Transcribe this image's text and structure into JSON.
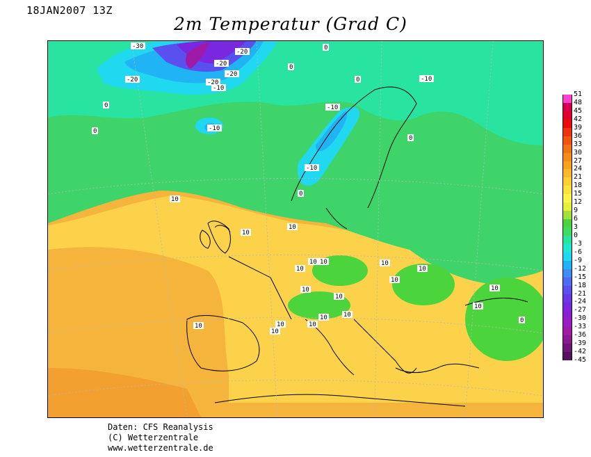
{
  "header": {
    "datetime": "18JAN2007 13Z",
    "title": "2m Temperatur (Grad C)"
  },
  "footer": {
    "line1": "Daten: CFS Reanalysis",
    "line2": "(C) Wetterzentrale",
    "line3": "www.wetterzentrale.de"
  },
  "legend": {
    "labels": [
      "51",
      "48",
      "45",
      "42",
      "39",
      "36",
      "33",
      "30",
      "27",
      "24",
      "21",
      "18",
      "15",
      "12",
      "9",
      "6",
      "3",
      "0",
      "-3",
      "-6",
      "-9",
      "-12",
      "-15",
      "-18",
      "-21",
      "-24",
      "-27",
      "-30",
      "-33",
      "-36",
      "-39",
      "-42",
      "-45"
    ],
    "colors": [
      "#ff3fcf",
      "#d4004f",
      "#e0002a",
      "#e80b0b",
      "#f03210",
      "#f05510",
      "#f07315",
      "#f48c18",
      "#f8a11e",
      "#fbb82a",
      "#fdd032",
      "#fde43c",
      "#fff44a",
      "#e6f03a",
      "#9ee23a",
      "#4cd43c",
      "#3fdc64",
      "#28e4a0",
      "#20e8d0",
      "#20d8f0",
      "#20b4f4",
      "#3f8cf4",
      "#4f6cf4",
      "#5a50f0",
      "#6a38e8",
      "#7a28e0",
      "#8a1ed0",
      "#9a1cc0",
      "#a01aa8",
      "#8a1890",
      "#701478",
      "#561060"
    ]
  },
  "map": {
    "region": "Europe",
    "contour_labels": [
      "-30",
      "-20",
      "-20",
      "-20",
      "-20",
      "-20",
      "-10",
      "-10",
      "-10",
      "-10",
      "-10",
      "0",
      "0",
      "0",
      "0",
      "0",
      "0",
      "0",
      "0",
      "10",
      "10",
      "10",
      "10",
      "10",
      "10",
      "10",
      "10",
      "10",
      "10",
      "10",
      "10",
      "10",
      "10",
      "10",
      "10",
      "10",
      "10",
      "10"
    ]
  }
}
